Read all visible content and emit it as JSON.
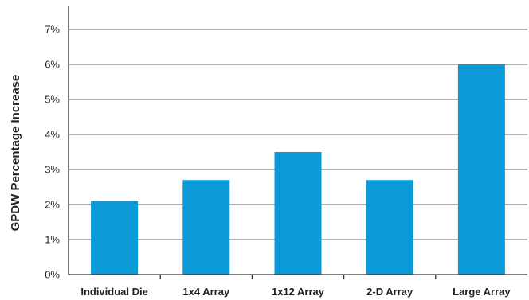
{
  "chart_data": {
    "type": "bar",
    "title": "",
    "xlabel": "",
    "ylabel": "GPDW Percentage Increase",
    "categories": [
      "Individual Die",
      "1x4 Array",
      "1x12 Array",
      "2-D Array",
      "Large Array"
    ],
    "values": [
      2.1,
      2.7,
      3.5,
      2.7,
      6.0
    ],
    "ylim": [
      0,
      7
    ],
    "yticks": [
      "0%",
      "1%",
      "2%",
      "3%",
      "4%",
      "5%",
      "6%",
      "7%"
    ],
    "grid": true,
    "legend": "none",
    "bar_color": "#0a9ad8",
    "grid_color": "#666666"
  }
}
